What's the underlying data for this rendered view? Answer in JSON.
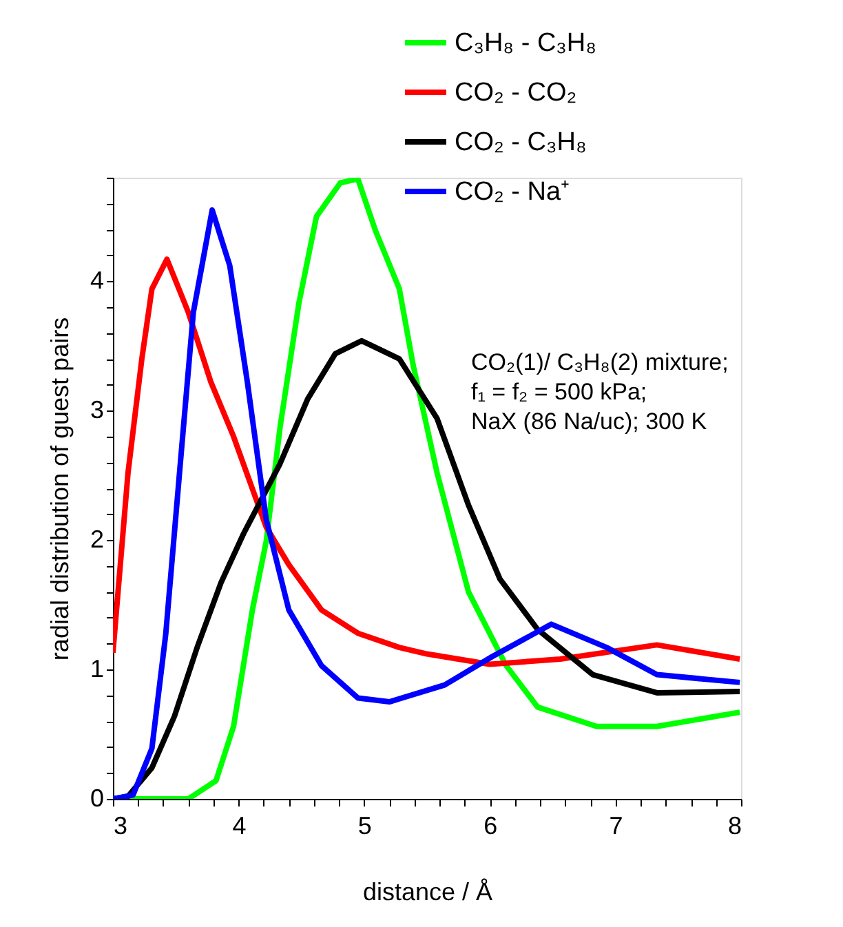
{
  "chart_data": {
    "type": "line",
    "xlabel": "distance / Å",
    "ylabel": "radial distribution of guest pairs",
    "xlim": [
      3,
      8
    ],
    "ylim": [
      0,
      4.8
    ],
    "xticks": [
      3,
      {
        "value": 3.2,
        "label": null
      },
      {
        "value": 3.4,
        "label": null
      },
      {
        "value": 3.6,
        "label": null
      },
      {
        "value": 3.8,
        "label": null
      },
      4,
      {
        "value": 4.2,
        "label": null
      },
      {
        "value": 4.4,
        "label": null
      },
      {
        "value": 4.6,
        "label": null
      },
      {
        "value": 4.8,
        "label": null
      },
      5,
      {
        "value": 5.2,
        "label": null
      },
      {
        "value": 5.4,
        "label": null
      },
      {
        "value": 5.6,
        "label": null
      },
      {
        "value": 5.8,
        "label": null
      },
      6,
      {
        "value": 6.2,
        "label": null
      },
      {
        "value": 6.4,
        "label": null
      },
      {
        "value": 6.6,
        "label": null
      },
      {
        "value": 6.8,
        "label": null
      },
      7,
      {
        "value": 7.2,
        "label": null
      },
      {
        "value": 7.4,
        "label": null
      },
      {
        "value": 7.6,
        "label": null
      },
      {
        "value": 7.8,
        "label": null
      },
      8
    ],
    "yticks": [
      0,
      {
        "value": 0.2,
        "label": null
      },
      {
        "value": 0.4,
        "label": null
      },
      {
        "value": 0.6,
        "label": null
      },
      {
        "value": 0.8,
        "label": null
      },
      1,
      {
        "value": 1.2,
        "label": null
      },
      {
        "value": 1.4,
        "label": null
      },
      {
        "value": 1.6,
        "label": null
      },
      {
        "value": 1.8,
        "label": null
      },
      2,
      {
        "value": 2.2,
        "label": null
      },
      {
        "value": 2.4,
        "label": null
      },
      {
        "value": 2.6,
        "label": null
      },
      {
        "value": 2.8,
        "label": null
      },
      3,
      {
        "value": 3.2,
        "label": null
      },
      {
        "value": 3.4,
        "label": null
      },
      {
        "value": 3.6,
        "label": null
      },
      {
        "value": 3.8,
        "label": null
      },
      4,
      {
        "value": 4.2,
        "label": null
      },
      {
        "value": 4.4,
        "label": null
      },
      {
        "value": 4.6,
        "label": null
      },
      {
        "value": 4.8,
        "label": null
      }
    ],
    "grid": false,
    "legend": "top right",
    "marker": "none",
    "line_style": "solid",
    "annotations": [
      "CO₂(1)/ C₃H₈(2) mixture;",
      "f₁ = f₂ = 500 kPa;",
      "NaX (86 Na/uc); 300 K"
    ],
    "series": [
      {
        "name": "C₃H₈ - C₃H₈",
        "color": "#00ff00",
        "x": [
          3,
          3.6,
          3.82,
          3.96,
          4.11,
          4.22,
          4.33,
          4.48,
          4.62,
          4.81,
          4.95,
          5.09,
          5.28,
          5.39,
          5.58,
          5.83,
          6.13,
          6.38,
          6.85,
          7.33,
          7.99
        ],
        "values": [
          0,
          0,
          0.14,
          0.56,
          1.46,
          1.99,
          2.87,
          3.83,
          4.5,
          4.76,
          4.79,
          4.39,
          3.94,
          3.35,
          2.52,
          1.6,
          1.03,
          0.71,
          0.56,
          0.56,
          0.67
        ]
      },
      {
        "name": "CO₂ - CO₂",
        "color": "#ff0000",
        "x": [
          3,
          3.12,
          3.23,
          3.31,
          3.43,
          3.6,
          3.78,
          3.96,
          4.22,
          4.4,
          4.66,
          4.95,
          5.28,
          5.5,
          6.0,
          6.56,
          7.33,
          7.99
        ],
        "values": [
          1.13,
          2.52,
          3.4,
          3.94,
          4.17,
          3.76,
          3.22,
          2.8,
          2.1,
          1.81,
          1.46,
          1.28,
          1.17,
          1.12,
          1.04,
          1.08,
          1.19,
          1.08
        ]
      },
      {
        "name": "CO₂ - C₃H₈",
        "color": "#000000",
        "x": [
          3,
          3.12,
          3.31,
          3.49,
          3.67,
          3.86,
          4.04,
          4.33,
          4.55,
          4.77,
          4.98,
          5.28,
          5.58,
          5.83,
          6.08,
          6.38,
          6.82,
          7.33,
          7.99
        ],
        "values": [
          0,
          0.02,
          0.24,
          0.64,
          1.17,
          1.67,
          2.05,
          2.59,
          3.09,
          3.44,
          3.54,
          3.4,
          2.94,
          2.27,
          1.7,
          1.31,
          0.96,
          0.82,
          0.83
        ]
      },
      {
        "name": "CO₂ - Na⁺",
        "color": "#0000ff",
        "x": [
          3,
          3.16,
          3.31,
          3.42,
          3.53,
          3.64,
          3.79,
          3.93,
          4.07,
          4.22,
          4.4,
          4.66,
          4.95,
          5.2,
          5.64,
          6.02,
          6.49,
          6.93,
          7.33,
          7.99
        ],
        "values": [
          0,
          0.03,
          0.39,
          1.27,
          2.52,
          3.76,
          4.55,
          4.12,
          3.22,
          2.16,
          1.46,
          1.03,
          0.78,
          0.75,
          0.88,
          1.1,
          1.35,
          1.17,
          0.96,
          0.9
        ]
      }
    ]
  }
}
